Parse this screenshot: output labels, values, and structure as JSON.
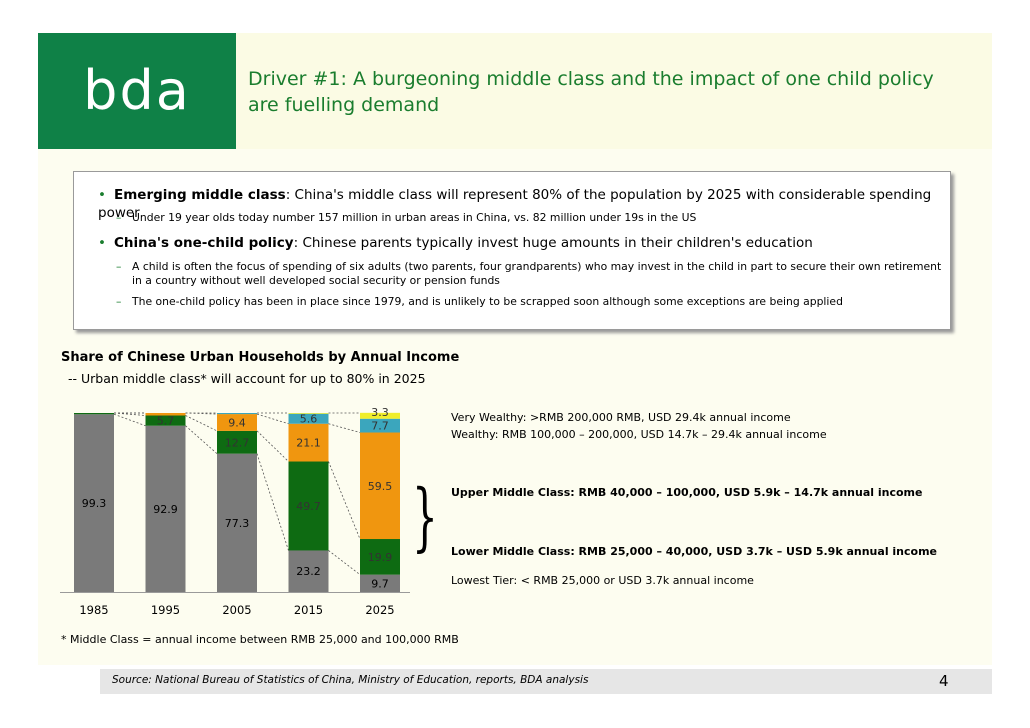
{
  "header": {
    "logo": "bda",
    "title_line1": "Driver #1: A burgeoning middle class and the impact of one child policy",
    "title_line2": "are fuelling demand"
  },
  "bullets": [
    {
      "heading": "Emerging middle class",
      "text": ": China's middle class will represent 80% of the population by 2025 with considerable spending power",
      "subs": [
        "Under 19 year olds today number 157 million in urban areas in China, vs. 82 million under 19s in the US"
      ]
    },
    {
      "heading": "China's one-child policy",
      "text": ": Chinese parents typically invest huge amounts in their children's education",
      "subs": [
        "A child is often the focus of spending of six adults (two parents, four grandparents) who may invest in the child in part to secure their own retirement in a country without well developed social security or pension funds",
        "The one-child policy has been in place since 1979, and is unlikely to be scrapped soon although some exceptions are being applied"
      ]
    }
  ],
  "chart_data": {
    "type": "bar",
    "stacked": true,
    "title": "Share of Chinese Urban Households by Annual Income",
    "subtitle": "-- Urban middle class* will account for up to 80% in 2025",
    "categories": [
      "1985",
      "1995",
      "2005",
      "2015",
      "2025"
    ],
    "ylim": [
      0,
      100
    ],
    "series": [
      {
        "name": "Lowest Tier: < RMB 25,000 or USD 3.7k annual income",
        "color": "#7a7a7a",
        "values": [
          99.3,
          92.9,
          77.3,
          23.2,
          9.7
        ],
        "labels": [
          "99.3",
          "92.9",
          "77.3",
          "23.2",
          "9.7"
        ]
      },
      {
        "name": "Lower Middle Class: RMB 25,000 – 40,000, USD 3.7k – USD 5.9k annual income",
        "color": "#0e6b12",
        "values": [
          0.7,
          5.7,
          12.7,
          49.7,
          19.9
        ],
        "labels": [
          "",
          "5.7",
          "12.7",
          "49.7",
          "19.9"
        ]
      },
      {
        "name": "Upper Middle Class: RMB 40,000 – 100,000, USD 5.9k – 14.7k annual income",
        "color": "#f0960f",
        "values": [
          0,
          1.4,
          9.4,
          21.1,
          59.5
        ],
        "labels": [
          "",
          "",
          "9.4",
          "21.1",
          "59.5"
        ]
      },
      {
        "name": "Wealthy: RMB 100,000 – 200,000,  USD 14.7k – 29.4k annual income",
        "color": "#3ba6bd",
        "values": [
          0,
          0,
          0.6,
          5.6,
          7.7
        ],
        "labels": [
          "",
          "",
          "",
          "5.6",
          "7.7"
        ]
      },
      {
        "name": "Very Wealthy:  >RMB 200,000 RMB, USD 29.4k annual income",
        "color": "#f0ee2a",
        "values": [
          0,
          0,
          0,
          0.4,
          3.3
        ],
        "labels": [
          "",
          "",
          "",
          "",
          "3.3"
        ]
      }
    ]
  },
  "legend": {
    "very_wealthy": "Very Wealthy:  >RMB 200,000 RMB, USD 29.4k annual income",
    "wealthy": "Wealthy: RMB 100,000 – 200,000,  USD 14.7k – 29.4k annual income",
    "upper_middle": "Upper Middle Class: RMB 40,000 – 100,000, USD 5.9k – 14.7k annual income",
    "lower_middle": "Lower Middle Class: RMB 25,000 – 40,000, USD 3.7k – USD 5.9k annual income",
    "lowest": "Lowest Tier: < RMB 25,000 or USD 3.7k annual income",
    "brace": "}"
  },
  "footnote": "* Middle Class = annual income between RMB 25,000 and 100,000 RMB",
  "footer": {
    "source": "Source: National Bureau of Statistics of China, Ministry of Education, reports, BDA analysis",
    "page_number": "4"
  }
}
